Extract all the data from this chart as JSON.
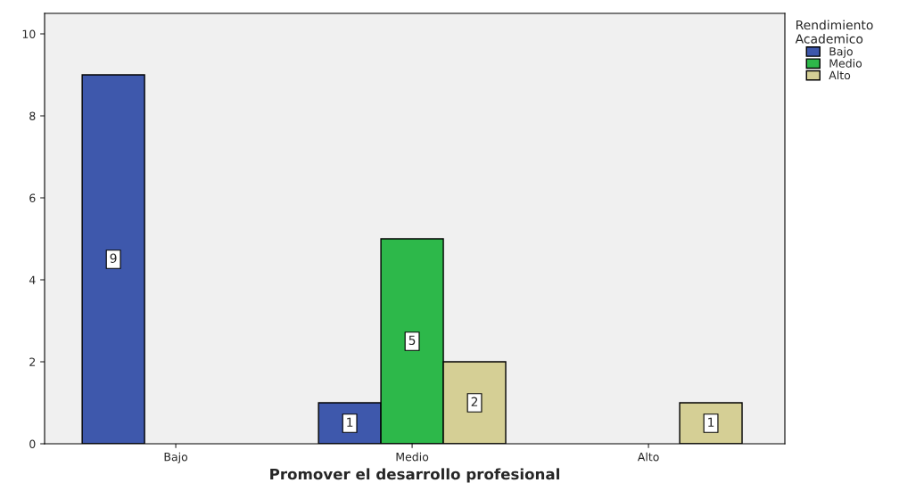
{
  "chart_data": {
    "type": "bar",
    "xlabel": "Promover el desarrollo profesional",
    "legend_title": "Rendimiento Academico",
    "categories": [
      "Bajo",
      "Medio",
      "Alto"
    ],
    "series": [
      {
        "name": "Bajo",
        "color": "#3e58ac",
        "values": [
          9,
          1,
          null
        ]
      },
      {
        "name": "Medio",
        "color": "#2db84a",
        "values": [
          null,
          5,
          null
        ]
      },
      {
        "name": "Alto",
        "color": "#d5cf95",
        "values": [
          null,
          2,
          1
        ]
      }
    ],
    "ylim": [
      0,
      10.5
    ],
    "yticks": [
      0,
      2,
      4,
      6,
      8,
      10
    ],
    "grid": false,
    "legend": "top right",
    "data_labels": true
  }
}
